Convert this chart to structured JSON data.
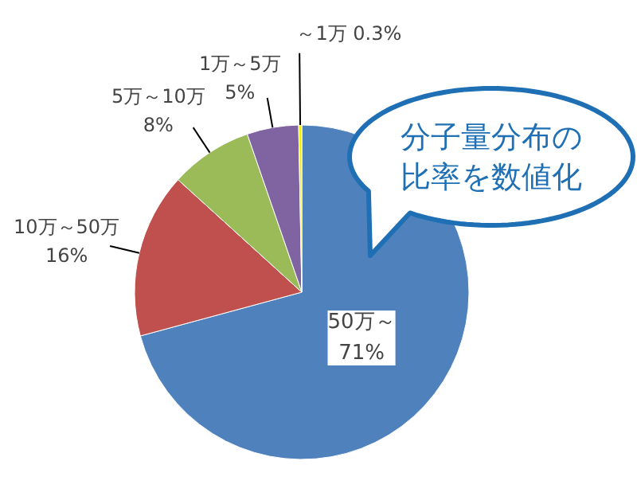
{
  "chart_data": {
    "type": "pie",
    "categories": [
      "50万～",
      "10万～50万",
      "5万～10万",
      "1万～5万",
      "～1万"
    ],
    "values": [
      71,
      16,
      8,
      5,
      0.3
    ],
    "value_labels": [
      "71%",
      "16%",
      "8%",
      "5%",
      "0.3%"
    ],
    "colors": [
      "#4f81bd",
      "#c0504d",
      "#9bbb59",
      "#8064a2",
      "#f2f200"
    ],
    "annotations": [
      "分子量分布の",
      "比率を数値化"
    ]
  }
}
